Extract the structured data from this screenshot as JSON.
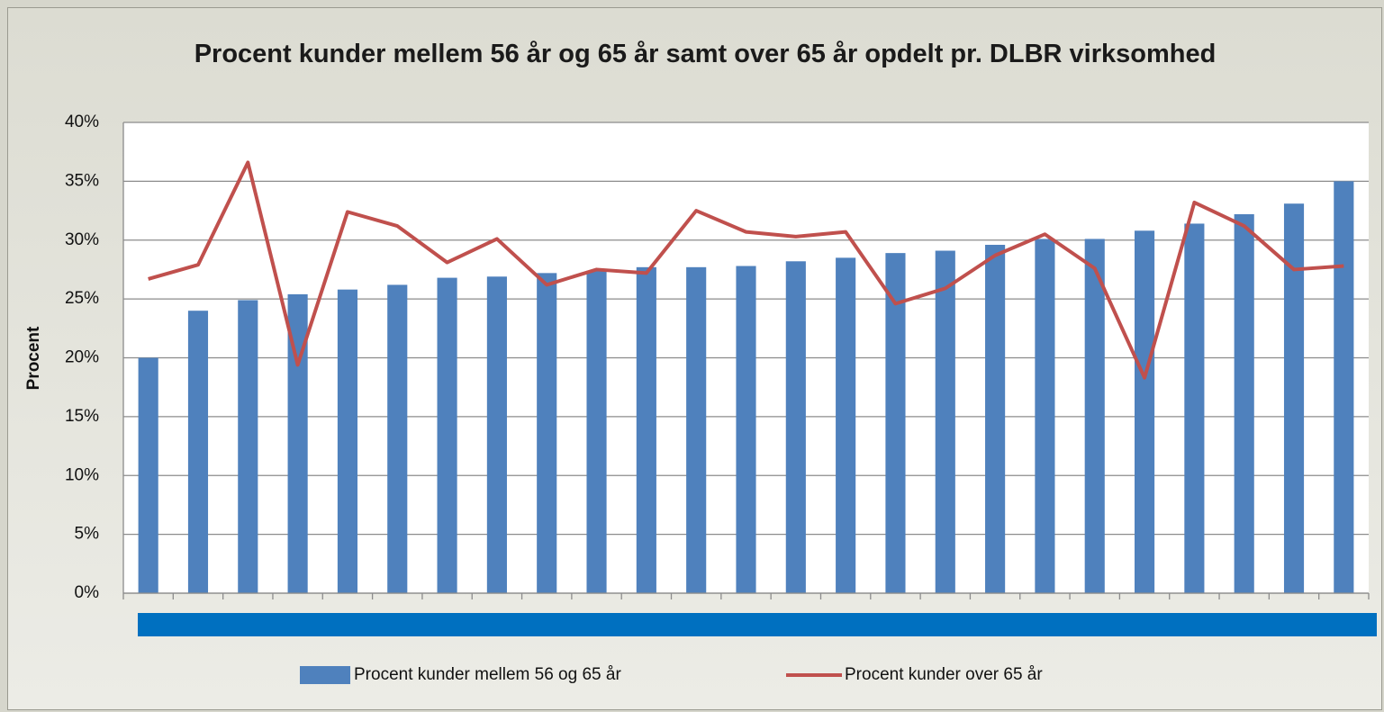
{
  "chart_data": {
    "type": "bar",
    "title": "Procent kunder mellem 56 år og 65 år samt over 65 år opdelt pr. DLBR virksomhed",
    "ylabel": "Procent",
    "categories": [
      null,
      null,
      null,
      null,
      null,
      null,
      null,
      null,
      null,
      null,
      null,
      null,
      null,
      null,
      null,
      null,
      null,
      null,
      null,
      null,
      null,
      null,
      null,
      null,
      null
    ],
    "series": [
      {
        "name": "Procent kunder mellem 56 og 65 år",
        "type": "bar",
        "color": "#4f81bd",
        "values": [
          20.0,
          24.0,
          24.9,
          25.4,
          25.8,
          26.2,
          26.8,
          26.9,
          27.2,
          27.4,
          27.7,
          27.7,
          27.8,
          28.2,
          28.5,
          28.9,
          29.1,
          29.6,
          30.1,
          30.1,
          30.8,
          31.4,
          32.2,
          33.1,
          35.0
        ]
      },
      {
        "name": "Procent kunder over 65 år",
        "type": "line",
        "color": "#c0504d",
        "values": [
          26.7,
          27.9,
          36.6,
          19.4,
          32.4,
          31.2,
          28.1,
          30.1,
          26.2,
          27.5,
          27.2,
          32.5,
          30.7,
          30.3,
          30.7,
          24.6,
          25.9,
          28.7,
          30.5,
          27.6,
          18.3,
          33.2,
          31.2,
          27.5,
          27.8
        ]
      }
    ],
    "ylim": [
      0,
      40
    ],
    "yticks": [
      {
        "value": 0,
        "label": "0%"
      },
      {
        "value": 5,
        "label": "5%"
      },
      {
        "value": 10,
        "label": "10%"
      },
      {
        "value": 15,
        "label": "15%"
      },
      {
        "value": 20,
        "label": "20%"
      },
      {
        "value": 25,
        "label": "25%"
      },
      {
        "value": 30,
        "label": "30%"
      },
      {
        "value": 35,
        "label": "35%"
      },
      {
        "value": 40,
        "label": "40%"
      }
    ],
    "grid": true,
    "legend": "bottom"
  }
}
